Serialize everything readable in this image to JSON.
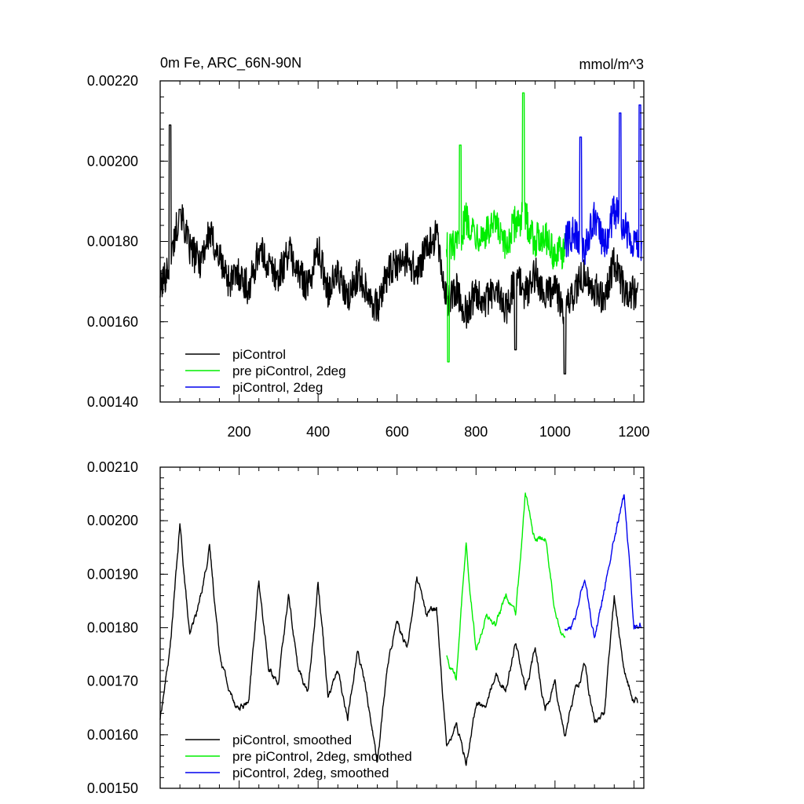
{
  "chart_data": [
    {
      "type": "line",
      "title": "0m Fe, ARC_66N-90N",
      "units": "mmol/m^3",
      "xlim": [
        0,
        1225
      ],
      "ylim": [
        0.0014,
        0.0022
      ],
      "x_ticks": [
        200,
        400,
        600,
        800,
        1000,
        1200
      ],
      "x_tick_labels": [
        "200",
        "400",
        "600",
        "800",
        "1000",
        "1200"
      ],
      "y_ticks": [
        0.0014,
        0.0016,
        0.0018,
        0.002,
        0.0022
      ],
      "y_tick_labels": [
        "0.00140",
        "0.00160",
        "0.00180",
        "0.00200",
        "0.00220"
      ],
      "legend_position": "bottom-left",
      "series": [
        {
          "name": "piControl",
          "color": "#000000",
          "x": [
            0,
            25,
            50,
            75,
            100,
            125,
            150,
            175,
            200,
            225,
            250,
            275,
            300,
            325,
            350,
            375,
            400,
            425,
            450,
            475,
            500,
            525,
            550,
            575,
            600,
            625,
            650,
            675,
            700,
            725,
            750,
            775,
            800,
            825,
            850,
            875,
            900,
            925,
            950,
            975,
            1000,
            1025,
            1050,
            1075,
            1100,
            1125,
            1150,
            1175,
            1200
          ],
          "values": [
            0.00168,
            0.00175,
            0.00188,
            0.00178,
            0.00175,
            0.00182,
            0.00176,
            0.0017,
            0.00172,
            0.00168,
            0.00178,
            0.00174,
            0.00171,
            0.00178,
            0.00172,
            0.00169,
            0.00178,
            0.00168,
            0.00172,
            0.00165,
            0.00172,
            0.00168,
            0.00163,
            0.00172,
            0.00174,
            0.00176,
            0.00172,
            0.00178,
            0.00182,
            0.00165,
            0.00168,
            0.00162,
            0.00168,
            0.00165,
            0.00168,
            0.00163,
            0.00171,
            0.00167,
            0.00172,
            0.00166,
            0.00169,
            0.00162,
            0.00168,
            0.00172,
            0.00168,
            0.00166,
            0.00175,
            0.00168,
            0.00167
          ],
          "peaks": [
            [
              25,
              0.00209
            ],
            [
              50,
              0.00188
            ],
            [
              900,
              0.00153
            ],
            [
              1025,
              0.00147
            ]
          ],
          "x_start": 0,
          "x_end": 1210,
          "samples": 1210
        },
        {
          "name": "pre piControl, 2deg",
          "color": "#00ee00",
          "x": [
            725,
            750,
            775,
            800,
            825,
            850,
            875,
            900,
            925,
            950,
            975,
            1000,
            1025
          ],
          "values": [
            0.0018,
            0.00178,
            0.00186,
            0.00182,
            0.00182,
            0.00184,
            0.00178,
            0.00185,
            0.00186,
            0.0018,
            0.00182,
            0.00176,
            0.00178
          ],
          "peaks": [
            [
              730,
              0.0015
            ],
            [
              760,
              0.00204
            ],
            [
              920,
              0.00217
            ]
          ],
          "x_start": 725,
          "x_end": 1025,
          "samples": 300
        },
        {
          "name": "piControl, 2deg",
          "color": "#0000ee",
          "x": [
            1025,
            1050,
            1075,
            1100,
            1125,
            1150,
            1175,
            1200,
            1220
          ],
          "values": [
            0.0018,
            0.00182,
            0.00178,
            0.00186,
            0.00178,
            0.00188,
            0.00184,
            0.0018,
            0.00178
          ],
          "peaks": [
            [
              1065,
              0.00206
            ],
            [
              1165,
              0.00212
            ],
            [
              1215,
              0.00214
            ]
          ],
          "x_start": 1025,
          "x_end": 1220,
          "samples": 195
        }
      ]
    },
    {
      "type": "line",
      "xlim": [
        0,
        1225
      ],
      "ylim": [
        0.0015,
        0.0021
      ],
      "x_ticks": [
        200,
        400,
        600,
        800,
        1000,
        1200
      ],
      "y_ticks": [
        0.0015,
        0.0016,
        0.0017,
        0.0018,
        0.0019,
        0.002,
        0.0021
      ],
      "y_tick_labels": [
        "0.00150",
        "0.00160",
        "0.00170",
        "0.00180",
        "0.00190",
        "0.00200",
        "0.00210"
      ],
      "legend_position": "bottom-left",
      "series": [
        {
          "name": "piControl, smoothed",
          "color": "#000000",
          "x": [
            0,
            25,
            50,
            75,
            100,
            125,
            150,
            175,
            200,
            225,
            250,
            275,
            300,
            325,
            350,
            375,
            400,
            425,
            450,
            475,
            500,
            525,
            550,
            575,
            600,
            625,
            650,
            675,
            700,
            725,
            750,
            775,
            800,
            825,
            850,
            875,
            900,
            925,
            950,
            975,
            1000,
            1025,
            1050,
            1075,
            1100,
            1125,
            1150,
            1175,
            1200
          ],
          "values": [
            0.00163,
            0.00176,
            0.00199,
            0.00178,
            0.00185,
            0.00195,
            0.00176,
            0.00168,
            0.00165,
            0.00166,
            0.00189,
            0.00172,
            0.0017,
            0.00186,
            0.00172,
            0.00168,
            0.00189,
            0.00168,
            0.00172,
            0.00163,
            0.00176,
            0.00167,
            0.00155,
            0.00172,
            0.00182,
            0.00176,
            0.00189,
            0.00182,
            0.00184,
            0.00158,
            0.00162,
            0.00155,
            0.00166,
            0.00165,
            0.00172,
            0.00168,
            0.00178,
            0.00168,
            0.00176,
            0.00165,
            0.0017,
            0.0016,
            0.00168,
            0.00173,
            0.00162,
            0.00164,
            0.00186,
            0.00172,
            0.00166
          ],
          "x_start": 0,
          "x_end": 1210,
          "samples": 1210
        },
        {
          "name": "pre piControl, 2deg, smoothed",
          "color": "#00ee00",
          "x": [
            725,
            750,
            775,
            800,
            825,
            850,
            875,
            900,
            925,
            950,
            975,
            1000,
            1025
          ],
          "values": [
            0.00175,
            0.0017,
            0.00196,
            0.00176,
            0.00183,
            0.0018,
            0.00186,
            0.00182,
            0.00205,
            0.00196,
            0.00197,
            0.00183,
            0.00178
          ],
          "x_start": 725,
          "x_end": 1025,
          "samples": 300
        },
        {
          "name": "piControl, 2deg, smoothed",
          "color": "#0000ee",
          "x": [
            1025,
            1050,
            1075,
            1100,
            1125,
            1150,
            1175,
            1200,
            1220
          ],
          "values": [
            0.0018,
            0.00181,
            0.00189,
            0.00178,
            0.00187,
            0.00197,
            0.00205,
            0.0018,
            0.00181
          ],
          "x_start": 1025,
          "x_end": 1220,
          "samples": 195
        }
      ]
    }
  ]
}
